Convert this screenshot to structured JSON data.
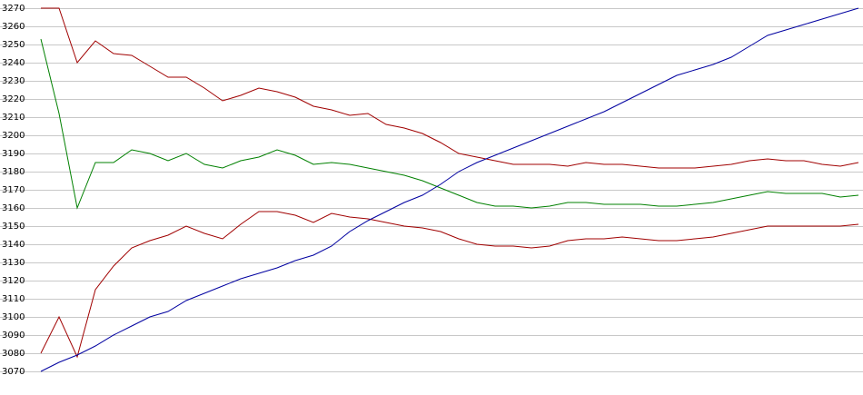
{
  "chart_data": {
    "type": "line",
    "ylim": [
      3070,
      3270
    ],
    "yticks": [
      3070,
      3080,
      3090,
      3100,
      3110,
      3120,
      3130,
      3140,
      3150,
      3160,
      3170,
      3180,
      3190,
      3200,
      3210,
      3220,
      3230,
      3240,
      3250,
      3260,
      3270
    ],
    "grid": true,
    "series": [
      {
        "color": "#a00000",
        "values": [
          3270,
          3270,
          3240,
          3252,
          3245,
          3244,
          3238,
          3232,
          3232,
          3226,
          3219,
          3222,
          3226,
          3224,
          3221,
          3216,
          3214,
          3211,
          3212,
          3206,
          3204,
          3201,
          3196,
          3190,
          3188,
          3186,
          3184,
          3184,
          3184,
          3183,
          3185,
          3184,
          3184,
          3183,
          3182,
          3182,
          3182,
          3183,
          3184,
          3186,
          3187,
          3186,
          3186,
          3184,
          3183,
          3185
        ]
      },
      {
        "color": "#008000",
        "values": [
          3253,
          3212,
          3160,
          3185,
          3185,
          3192,
          3190,
          3186,
          3190,
          3184,
          3182,
          3186,
          3188,
          3192,
          3189,
          3184,
          3185,
          3184,
          3182,
          3180,
          3178,
          3175,
          3171,
          3167,
          3163,
          3161,
          3161,
          3160,
          3161,
          3163,
          3163,
          3162,
          3162,
          3162,
          3161,
          3161,
          3162,
          3163,
          3165,
          3167,
          3169,
          3168,
          3168,
          3168,
          3166,
          3167
        ]
      },
      {
        "color": "#a00000",
        "values": [
          3080,
          3100,
          3078,
          3115,
          3128,
          3138,
          3142,
          3145,
          3150,
          3146,
          3143,
          3151,
          3158,
          3158,
          3156,
          3152,
          3157,
          3155,
          3154,
          3152,
          3150,
          3149,
          3147,
          3143,
          3140,
          3139,
          3139,
          3138,
          3139,
          3142,
          3143,
          3143,
          3144,
          3143,
          3142,
          3142,
          3143,
          3144,
          3146,
          3148,
          3150,
          3150,
          3150,
          3150,
          3150,
          3151
        ]
      },
      {
        "color": "#0000a0",
        "values": [
          3070,
          3075,
          3079,
          3084,
          3090,
          3095,
          3100,
          3103,
          3109,
          3113,
          3117,
          3121,
          3124,
          3127,
          3131,
          3134,
          3139,
          3147,
          3153,
          3158,
          3163,
          3167,
          3173,
          3180,
          3185,
          3189,
          3193,
          3197,
          3201,
          3205,
          3209,
          3213,
          3218,
          3223,
          3228,
          3233,
          3236,
          3239,
          3243,
          3249,
          3255,
          3258,
          3261,
          3264,
          3267,
          3270
        ]
      }
    ]
  }
}
